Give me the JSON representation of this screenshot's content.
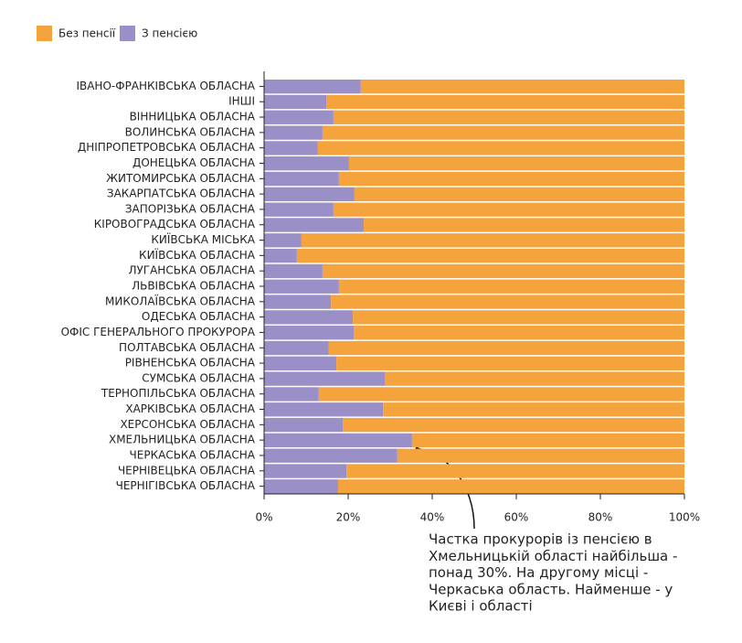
{
  "chart_data": {
    "type": "stacked_barh",
    "categories": [
      "ІВАНО-ФРАНКІВСЬКА ОБЛАСНА",
      "ІНШІ",
      "ВІННИЦЬКА ОБЛАСНА",
      "ВОЛИНСЬКА ОБЛАСНА",
      "ДНІПРОПЕТРОВСЬКА ОБЛАСНА",
      "ДОНЕЦЬКА ОБЛАСНА",
      "ЖИТОМИРСЬКА ОБЛАСНА",
      "ЗАКАРПАТСЬКА ОБЛАСНА",
      "ЗАПОРІЗЬКА ОБЛАСНА",
      "КІРОВОГРАДСЬКА ОБЛАСНА",
      "КИЇВСЬКА МІСЬКА",
      "КИЇВСЬКА ОБЛАСНА",
      "ЛУГАНСЬКА ОБЛАСНА",
      "ЛЬВІВСЬКА ОБЛАСНА",
      "МИКОЛАЇВСЬКА ОБЛАСНА",
      "ОДЕСЬКА ОБЛАСНА",
      "ОФІС ГЕНЕРАЛЬНОГО ПРОКУРОРА",
      "ПОЛТАВСЬКА ОБЛАСНА",
      "РІВНЕНСЬКА ОБЛАСНА",
      "СУМСЬКА ОБЛАСНА",
      "ТЕРНОПІЛЬСЬКА ОБЛАСНА",
      "ХАРКІВСЬКА ОБЛАСНА",
      "ХЕРСОНСЬКА ОБЛАСНА",
      "ХМЕЛЬНИЦЬКА ОБЛАСНА",
      "ЧЕРКАСЬКА ОБЛАСНА",
      "ЧЕРНІВЕЦЬКА ОБЛАСНА",
      "ЧЕРНІГІВСЬКА ОБЛАСНА"
    ],
    "series": [
      {
        "name": "Без пенсії",
        "color": "#f4a33d",
        "values": [
          77.0,
          85.2,
          83.5,
          86.1,
          87.2,
          79.8,
          82.2,
          78.5,
          83.5,
          76.3,
          91.1,
          92.2,
          86.1,
          82.2,
          84.1,
          78.9,
          78.7,
          84.6,
          82.8,
          71.3,
          87.0,
          71.7,
          81.3,
          64.8,
          68.3,
          80.4,
          82.4
        ]
      },
      {
        "name": "З пенсією",
        "color": "#9b8fc8",
        "values": [
          23.0,
          14.8,
          16.5,
          13.9,
          12.8,
          20.2,
          17.8,
          21.5,
          16.5,
          23.7,
          8.9,
          7.8,
          13.9,
          17.8,
          15.9,
          21.1,
          21.3,
          15.4,
          17.2,
          28.7,
          13.0,
          28.3,
          18.7,
          35.2,
          31.7,
          19.6,
          17.6
        ]
      }
    ],
    "xlim": [
      0,
      100
    ],
    "xticks": [
      {
        "value": 0,
        "label": "0%"
      },
      {
        "value": 20,
        "label": "20%"
      },
      {
        "value": 40,
        "label": "40%"
      },
      {
        "value": 60,
        "label": "60%"
      },
      {
        "value": 80,
        "label": "80%"
      },
      {
        "value": 100,
        "label": "100%"
      }
    ],
    "annotation": [
      "Частка прокурорів із пенсією в",
      "Хмельницькій області найбільша -",
      "понад 30%. На другому місці -",
      "Черкаська область. Найменше - у",
      "Києві і області"
    ]
  }
}
